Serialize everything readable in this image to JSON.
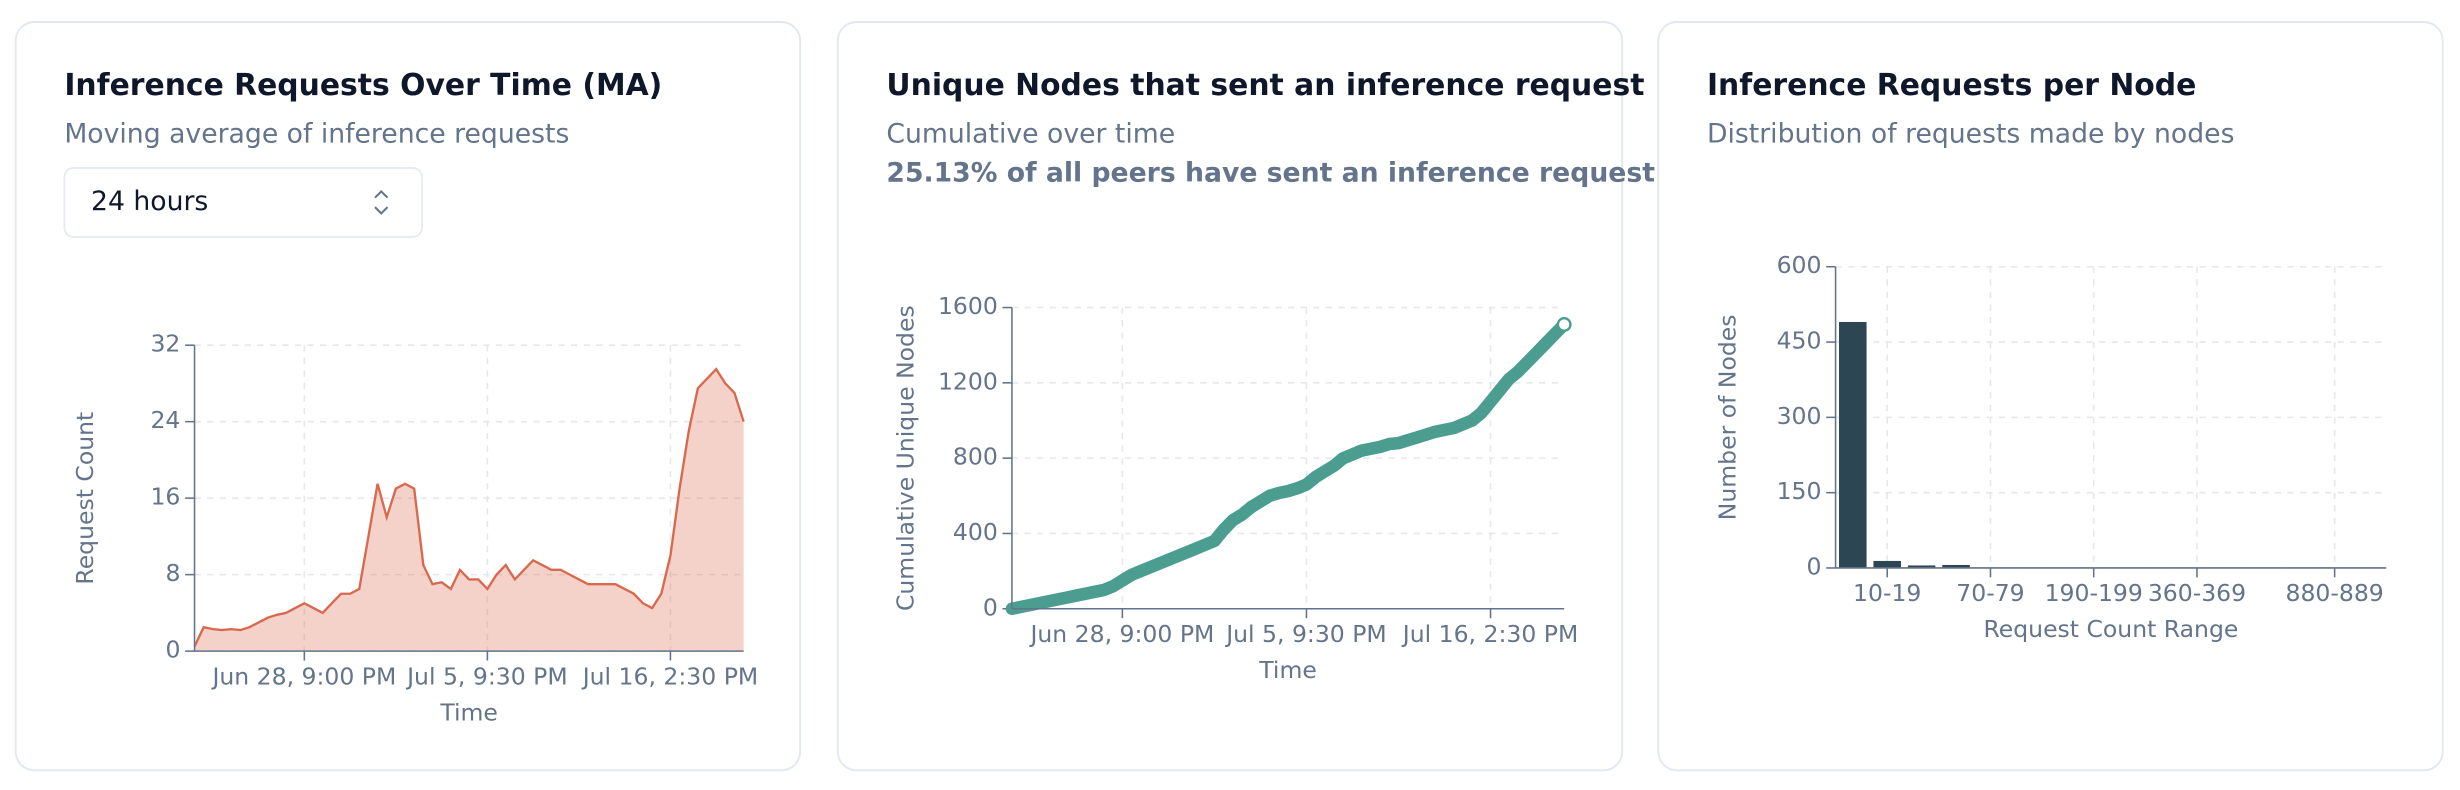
{
  "chart_data": [
    {
      "type": "area",
      "title": "Inference Requests Over Time (MA)",
      "subtitle": "Moving average of inference requests",
      "selector": "24 hours",
      "x_label": "Time",
      "y_label": "Request Count",
      "categories": [
        null,
        null,
        null,
        null,
        null,
        null,
        null,
        null,
        null,
        null,
        null,
        null,
        "Jun 28, 9:00 PM",
        null,
        null,
        null,
        null,
        null,
        null,
        null,
        null,
        null,
        null,
        null,
        null,
        null,
        null,
        null,
        null,
        null,
        null,
        null,
        "Jul 5, 9:30 PM",
        null,
        null,
        null,
        null,
        null,
        null,
        null,
        null,
        null,
        null,
        null,
        null,
        null,
        null,
        null,
        null,
        null,
        null,
        null,
        "Jul 16, 2:30 PM",
        null,
        null,
        null,
        null,
        null,
        null,
        null,
        null
      ],
      "values": [
        0.5,
        2.5,
        2.3,
        2.2,
        2.3,
        2.2,
        2.5,
        3,
        3.5,
        3.8,
        4,
        4.5,
        5,
        4.5,
        4,
        5,
        6,
        6,
        6.5,
        12,
        17.5,
        14,
        17,
        17.5,
        17,
        9,
        7,
        7.2,
        6.5,
        8.5,
        7.5,
        7.5,
        6.5,
        8,
        9,
        7.5,
        8.5,
        9.5,
        9,
        8.5,
        8.5,
        8,
        7.5,
        7,
        7,
        7,
        7,
        6.5,
        6,
        5,
        4.5,
        6,
        10,
        17,
        23,
        27.5,
        28.5,
        29.5,
        28,
        27,
        24
      ],
      "color": "#d9694e",
      "ylim": [
        0,
        32
      ],
      "yticks": [
        0,
        8,
        16,
        24,
        32
      ],
      "grid": true
    },
    {
      "type": "line",
      "title": "Unique Nodes that sent an inference request",
      "subtitle": "Cumulative over time",
      "note": "25.13% of all peers have sent an inference request",
      "x_label": "Time",
      "y_label": "Cumulative Unique Nodes",
      "categories": [
        null,
        null,
        null,
        null,
        null,
        null,
        null,
        null,
        null,
        null,
        null,
        null,
        "Jun 28, 9:00 PM",
        null,
        null,
        null,
        null,
        null,
        null,
        null,
        null,
        null,
        null,
        null,
        null,
        null,
        null,
        null,
        null,
        null,
        null,
        null,
        "Jul 5, 9:30 PM",
        null,
        null,
        null,
        null,
        null,
        null,
        null,
        null,
        null,
        null,
        null,
        null,
        null,
        null,
        null,
        null,
        null,
        null,
        null,
        "Jul 16, 2:30 PM",
        null,
        null,
        null,
        null,
        null,
        null,
        null,
        null
      ],
      "values": [
        0,
        10,
        20,
        30,
        40,
        50,
        60,
        70,
        80,
        90,
        100,
        120,
        150,
        180,
        200,
        220,
        240,
        260,
        280,
        300,
        320,
        340,
        360,
        420,
        470,
        500,
        540,
        570,
        600,
        615,
        625,
        640,
        660,
        700,
        730,
        760,
        800,
        820,
        840,
        850,
        860,
        875,
        880,
        895,
        910,
        925,
        940,
        950,
        960,
        980,
        1000,
        1040,
        1100,
        1160,
        1220,
        1260,
        1310,
        1360,
        1410,
        1460,
        1510
      ],
      "color": "#4a9d8f",
      "ylim": [
        0,
        1600
      ],
      "yticks": [
        0,
        400,
        800,
        1200,
        1600
      ],
      "grid": true
    },
    {
      "type": "bar",
      "title": "Inference Requests per Node",
      "subtitle": "Distribution of requests made by nodes",
      "x_label": "Request Count Range",
      "y_label": "Number of Nodes",
      "categories": [
        null,
        "10-19",
        null,
        null,
        "70-79",
        null,
        null,
        "190-199",
        null,
        null,
        "360-369",
        null,
        null,
        null,
        "880-889",
        null
      ],
      "values": [
        490,
        14,
        5,
        6,
        1,
        1,
        1,
        1,
        1,
        1,
        1,
        1,
        1,
        1,
        1,
        1
      ],
      "color": "#2d4654",
      "ylim": [
        0,
        600
      ],
      "yticks": [
        0,
        150,
        300,
        450,
        600
      ],
      "grid": true
    }
  ]
}
